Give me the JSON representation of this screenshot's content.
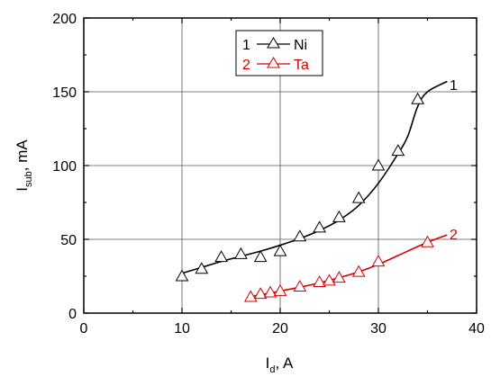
{
  "chart_data": {
    "type": "scatter",
    "x_axis": {
      "label_main": "I",
      "label_sub": "d",
      "label_unit": ", A",
      "range": [
        0,
        40
      ],
      "ticks": [
        0,
        10,
        20,
        30,
        40
      ],
      "tick_labels": [
        "0",
        "10",
        "20",
        "30",
        "40"
      ]
    },
    "y_axis": {
      "label_main": "I",
      "label_sub": "sub",
      "label_unit": ", mA",
      "range": [
        0,
        200
      ],
      "ticks": [
        0,
        50,
        100,
        150,
        200
      ],
      "tick_labels": [
        "0",
        "50",
        "100",
        "150",
        "200"
      ]
    },
    "grid": true,
    "legend": {
      "placement": "top-center",
      "entries": [
        {
          "number": "1",
          "name": "Ni",
          "color": "#000000"
        },
        {
          "number": "2",
          "name": "Ta",
          "color": "#d40000"
        }
      ]
    },
    "series": [
      {
        "name": "Ni",
        "label": "1",
        "color": "#000000",
        "marker": "open-triangle",
        "points": [
          [
            10,
            25
          ],
          [
            12,
            30
          ],
          [
            14,
            38
          ],
          [
            16,
            40
          ],
          [
            18,
            38
          ],
          [
            20,
            42
          ],
          [
            22,
            52
          ],
          [
            24,
            58
          ],
          [
            26,
            65
          ],
          [
            28,
            78
          ],
          [
            30,
            100
          ],
          [
            32,
            110
          ],
          [
            34,
            145
          ]
        ],
        "fit": [
          [
            10,
            27
          ],
          [
            12,
            31
          ],
          [
            14,
            35
          ],
          [
            16,
            38.5
          ],
          [
            18,
            42
          ],
          [
            20,
            46
          ],
          [
            22,
            50.5
          ],
          [
            24,
            56
          ],
          [
            26,
            63
          ],
          [
            28,
            73
          ],
          [
            30,
            88
          ],
          [
            32,
            108
          ],
          [
            33,
            120
          ],
          [
            34,
            140
          ],
          [
            35,
            150
          ],
          [
            37,
            157
          ]
        ]
      },
      {
        "name": "Ta",
        "label": "2",
        "color": "#d40000",
        "marker": "open-triangle",
        "points": [
          [
            17,
            11
          ],
          [
            18,
            13
          ],
          [
            19,
            14
          ],
          [
            20,
            15
          ],
          [
            22,
            18
          ],
          [
            24,
            21
          ],
          [
            25,
            22
          ],
          [
            26,
            24
          ],
          [
            28,
            28
          ],
          [
            30,
            35
          ],
          [
            35,
            48
          ]
        ],
        "fit": [
          [
            17,
            11
          ],
          [
            18,
            12.5
          ],
          [
            19,
            13.5
          ],
          [
            20,
            15
          ],
          [
            22,
            17.5
          ],
          [
            24,
            20.5
          ],
          [
            26,
            24
          ],
          [
            28,
            28
          ],
          [
            30,
            33
          ],
          [
            32,
            39
          ],
          [
            35,
            48
          ],
          [
            37,
            53
          ]
        ]
      }
    ]
  }
}
